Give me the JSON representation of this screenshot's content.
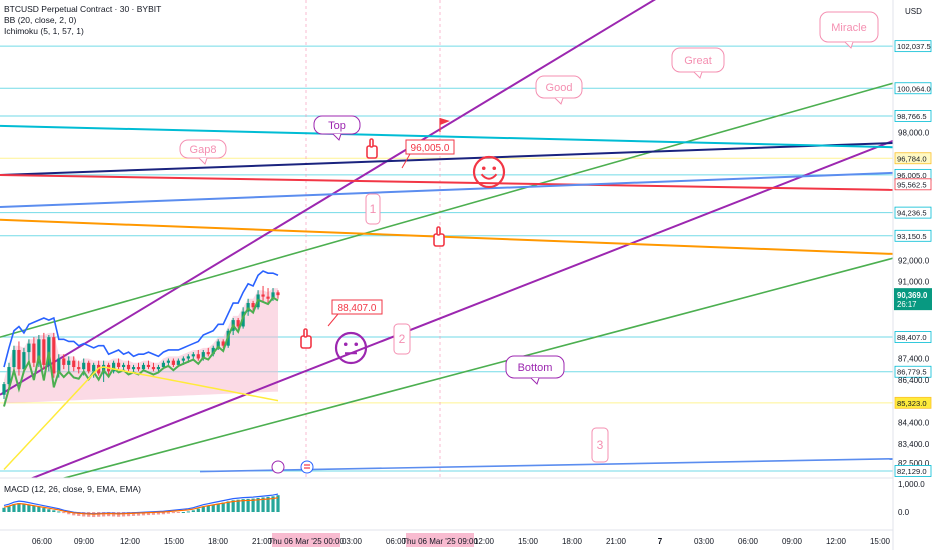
{
  "legend": {
    "line1": "BTCUSD Perpetual Contract · 30 · BYBIT",
    "line2": "BB (20, close, 2, 0)",
    "line3": "Ichimoku (5, 1, 57, 1)",
    "macd": "MACD (12, 26, close, 9, EMA, EMA)"
  },
  "currency": "USD",
  "countdown": "26:17",
  "colors": {
    "up": "#089981",
    "down": "#f23645",
    "bb": "#2962ff",
    "ichimoku": "#ffeb3b",
    "purple": "#9c27b0",
    "green": "#4caf50",
    "blue": "#5b8def",
    "navy": "#1a237e",
    "red": "#f23645",
    "orange": "#ff9800",
    "cyan": "#00bcd4",
    "pink": "#f06292"
  },
  "chart_data": {
    "type": "candlestick",
    "ylim": [
      81800,
      104200
    ],
    "price_ticks": [
      {
        "value": 102037.5,
        "label": "102,037.5",
        "style": "boxed"
      },
      {
        "value": 100064.0,
        "label": "100,064.0",
        "style": "boxed"
      },
      {
        "value": 98766.5,
        "label": "98,766.5",
        "style": "boxed"
      },
      {
        "value": 98000.0,
        "label": "98,000.0",
        "style": "plain"
      },
      {
        "value": 96784.0,
        "label": "96,784.0",
        "style": "yellow"
      },
      {
        "value": 96005.0,
        "label": "96,005.0",
        "style": "boxed"
      },
      {
        "value": 95562.5,
        "label": "95,562.5",
        "style": "red"
      },
      {
        "value": 94236.5,
        "label": "94,236.5",
        "style": "boxed"
      },
      {
        "value": 93150.5,
        "label": "93,150.5",
        "style": "boxed"
      },
      {
        "value": 92000.0,
        "label": "92,000.0",
        "style": "plain"
      },
      {
        "value": 91000.0,
        "label": "91,000.0",
        "style": "plain"
      },
      {
        "value": 88407.0,
        "label": "88,407.0",
        "style": "boxed"
      },
      {
        "value": 87400.0,
        "label": "87,400.0",
        "style": "plain"
      },
      {
        "value": 86779.5,
        "label": "86,779.5",
        "style": "boxed"
      },
      {
        "value": 86400.0,
        "label": "86,400.0",
        "style": "plain"
      },
      {
        "value": 85323.0,
        "label": "85,323.0",
        "style": "yellowfill"
      },
      {
        "value": 84400.0,
        "label": "84,400.0",
        "style": "plain"
      },
      {
        "value": 83400.0,
        "label": "83,400.0",
        "style": "plain"
      },
      {
        "value": 82500.0,
        "label": "82,500.0",
        "style": "plain"
      },
      {
        "value": 82129.0,
        "label": "82,129.0",
        "style": "boxed"
      }
    ],
    "last_price": {
      "value": 90369.0,
      "label": "90,369.0"
    },
    "horizontal_levels": [
      {
        "value": 102037.5,
        "color": "#00bcd4"
      },
      {
        "value": 100064.0,
        "color": "#00bcd4"
      },
      {
        "value": 98766.5,
        "color": "#00bcd4"
      },
      {
        "value": 96784.0,
        "color": "#ffeb3b"
      },
      {
        "value": 96005.0,
        "color": "#00bcd4"
      },
      {
        "value": 94236.5,
        "color": "#00bcd4"
      },
      {
        "value": 93150.5,
        "color": "#00bcd4"
      },
      {
        "value": 88407.0,
        "color": "#00bcd4"
      },
      {
        "value": 86779.5,
        "color": "#00bcd4"
      },
      {
        "value": 85323.0,
        "color": "#ffeb3b"
      },
      {
        "value": 82129.0,
        "color": "#00bcd4"
      }
    ],
    "candles": [
      {
        "o": 85700,
        "h": 86300,
        "l": 85500,
        "c": 86200
      },
      {
        "o": 86200,
        "h": 87200,
        "l": 86000,
        "c": 87000
      },
      {
        "o": 87000,
        "h": 88000,
        "l": 86800,
        "c": 87800
      },
      {
        "o": 87800,
        "h": 88200,
        "l": 86600,
        "c": 86900
      },
      {
        "o": 86900,
        "h": 87900,
        "l": 86700,
        "c": 87700
      },
      {
        "o": 87700,
        "h": 88300,
        "l": 87300,
        "c": 88100
      },
      {
        "o": 88100,
        "h": 88400,
        "l": 87000,
        "c": 87200
      },
      {
        "o": 87200,
        "h": 88500,
        "l": 87000,
        "c": 88300
      },
      {
        "o": 88300,
        "h": 88600,
        "l": 86900,
        "c": 87100
      },
      {
        "o": 87100,
        "h": 88500,
        "l": 86800,
        "c": 88400
      },
      {
        "o": 88400,
        "h": 88600,
        "l": 86500,
        "c": 86700
      },
      {
        "o": 86700,
        "h": 87600,
        "l": 86500,
        "c": 87400
      },
      {
        "o": 87400,
        "h": 87600,
        "l": 86900,
        "c": 87100
      },
      {
        "o": 87100,
        "h": 87500,
        "l": 86800,
        "c": 87300
      },
      {
        "o": 87300,
        "h": 87500,
        "l": 86800,
        "c": 87000
      },
      {
        "o": 87000,
        "h": 87300,
        "l": 86700,
        "c": 86900
      },
      {
        "o": 86900,
        "h": 87400,
        "l": 86600,
        "c": 87200
      },
      {
        "o": 87200,
        "h": 87300,
        "l": 86700,
        "c": 86800
      },
      {
        "o": 86800,
        "h": 87200,
        "l": 86500,
        "c": 87100
      },
      {
        "o": 87100,
        "h": 87300,
        "l": 86600,
        "c": 86700
      },
      {
        "o": 86700,
        "h": 87300,
        "l": 86300,
        "c": 87100
      },
      {
        "o": 87100,
        "h": 87200,
        "l": 86600,
        "c": 86800
      },
      {
        "o": 86800,
        "h": 87300,
        "l": 86700,
        "c": 87200
      },
      {
        "o": 87200,
        "h": 87400,
        "l": 86900,
        "c": 87000
      },
      {
        "o": 87000,
        "h": 87200,
        "l": 86800,
        "c": 87100
      },
      {
        "o": 87100,
        "h": 87300,
        "l": 86800,
        "c": 86900
      },
      {
        "o": 86900,
        "h": 87100,
        "l": 86700,
        "c": 87000
      },
      {
        "o": 87000,
        "h": 87200,
        "l": 86800,
        "c": 86900
      },
      {
        "o": 86900,
        "h": 87200,
        "l": 86800,
        "c": 87100
      },
      {
        "o": 87100,
        "h": 87300,
        "l": 86900,
        "c": 87000
      },
      {
        "o": 87000,
        "h": 87200,
        "l": 86800,
        "c": 86900
      },
      {
        "o": 86900,
        "h": 87100,
        "l": 86700,
        "c": 87000
      },
      {
        "o": 87000,
        "h": 87300,
        "l": 86900,
        "c": 87200
      },
      {
        "o": 87200,
        "h": 87400,
        "l": 87000,
        "c": 87300
      },
      {
        "o": 87300,
        "h": 87400,
        "l": 87000,
        "c": 87100
      },
      {
        "o": 87100,
        "h": 87400,
        "l": 87000,
        "c": 87300
      },
      {
        "o": 87300,
        "h": 87500,
        "l": 87100,
        "c": 87400
      },
      {
        "o": 87400,
        "h": 87600,
        "l": 87200,
        "c": 87500
      },
      {
        "o": 87500,
        "h": 87700,
        "l": 87300,
        "c": 87600
      },
      {
        "o": 87600,
        "h": 87800,
        "l": 87300,
        "c": 87400
      },
      {
        "o": 87400,
        "h": 87800,
        "l": 87300,
        "c": 87700
      },
      {
        "o": 87700,
        "h": 87900,
        "l": 87500,
        "c": 87600
      },
      {
        "o": 87600,
        "h": 88000,
        "l": 87500,
        "c": 87900
      },
      {
        "o": 87900,
        "h": 88300,
        "l": 87800,
        "c": 88200
      },
      {
        "o": 88200,
        "h": 88300,
        "l": 87900,
        "c": 88000
      },
      {
        "o": 88000,
        "h": 88800,
        "l": 87900,
        "c": 88700
      },
      {
        "o": 88700,
        "h": 89300,
        "l": 88500,
        "c": 89200
      },
      {
        "o": 89200,
        "h": 89300,
        "l": 88800,
        "c": 88900
      },
      {
        "o": 88900,
        "h": 89800,
        "l": 88800,
        "c": 89600
      },
      {
        "o": 89600,
        "h": 90200,
        "l": 89400,
        "c": 90000
      },
      {
        "o": 90000,
        "h": 90100,
        "l": 89600,
        "c": 89800
      },
      {
        "o": 89800,
        "h": 90600,
        "l": 89700,
        "c": 90400
      },
      {
        "o": 90400,
        "h": 90800,
        "l": 90100,
        "c": 90300
      },
      {
        "o": 90300,
        "h": 90700,
        "l": 90000,
        "c": 90200
      },
      {
        "o": 90200,
        "h": 90700,
        "l": 90100,
        "c": 90500
      },
      {
        "o": 90500,
        "h": 90600,
        "l": 90200,
        "c": 90369
      }
    ],
    "macd_ticks": [
      {
        "value": 1000,
        "label": "1,000.0"
      },
      {
        "value": 0,
        "label": "0.0"
      }
    ],
    "macd_histogram": [
      150,
      200,
      280,
      320,
      300,
      260,
      220,
      180,
      140,
      100,
      60,
      20,
      -40,
      -80,
      -120,
      -140,
      -160,
      -170,
      -180,
      -170,
      -160,
      -150,
      -160,
      -170,
      -160,
      -150,
      -140,
      -130,
      -120,
      -110,
      -100,
      -90,
      -80,
      -60,
      -40,
      -20,
      0,
      20,
      60,
      120,
      180,
      220,
      260,
      300,
      340,
      380,
      420,
      440,
      460,
      470,
      480,
      500,
      520,
      540,
      560,
      600
    ],
    "time_labels": [
      {
        "x": 42,
        "label": "06:00",
        "style": "plain"
      },
      {
        "x": 84,
        "label": "09:00",
        "style": "plain"
      },
      {
        "x": 130,
        "label": "12:00",
        "style": "plain"
      },
      {
        "x": 174,
        "label": "15:00",
        "style": "plain"
      },
      {
        "x": 218,
        "label": "18:00",
        "style": "plain"
      },
      {
        "x": 262,
        "label": "21:00",
        "style": "plain"
      },
      {
        "x": 306,
        "label": "Thu 06 Mar '25  00:00",
        "style": "highlight"
      },
      {
        "x": 352,
        "label": "03:00",
        "style": "plain"
      },
      {
        "x": 396,
        "label": "06:00",
        "style": "plain"
      },
      {
        "x": 440,
        "label": "Thu 06 Mar '25  09:00",
        "style": "highlight"
      },
      {
        "x": 484,
        "label": "12:00",
        "style": "plain"
      },
      {
        "x": 528,
        "label": "15:00",
        "style": "plain"
      },
      {
        "x": 572,
        "label": "18:00",
        "style": "plain"
      },
      {
        "x": 616,
        "label": "21:00",
        "style": "plain"
      },
      {
        "x": 660,
        "label": "7",
        "style": "bold"
      },
      {
        "x": 704,
        "label": "03:00",
        "style": "plain"
      },
      {
        "x": 748,
        "label": "06:00",
        "style": "plain"
      },
      {
        "x": 792,
        "label": "09:00",
        "style": "plain"
      },
      {
        "x": 836,
        "label": "12:00",
        "style": "plain"
      },
      {
        "x": 880,
        "label": "15:00",
        "style": "plain"
      }
    ],
    "annotations": [
      {
        "text": "Top",
        "kind": "bubble",
        "color": "#9c27b0"
      },
      {
        "text": "Gap8",
        "kind": "bubble",
        "color": "#f48fb1"
      },
      {
        "text": "Good",
        "kind": "bubble",
        "color": "#f48fb1"
      },
      {
        "text": "Great",
        "kind": "bubble",
        "color": "#f48fb1"
      },
      {
        "text": "Miracle",
        "kind": "bubble",
        "color": "#f48fb1"
      },
      {
        "text": "Bottom",
        "kind": "bubble",
        "color": "#9c27b0"
      },
      {
        "text": "96,005.0",
        "kind": "callout",
        "color": "#f23645"
      },
      {
        "text": "88,407.0",
        "kind": "callout",
        "color": "#f23645"
      },
      {
        "text": "1",
        "kind": "box",
        "color": "#f48fb1"
      },
      {
        "text": "2",
        "kind": "box",
        "color": "#f48fb1"
      },
      {
        "text": "3",
        "kind": "box",
        "color": "#f48fb1"
      }
    ],
    "emoji": [
      {
        "name": "smiley-face-icon",
        "color": "#f23645"
      },
      {
        "name": "neutral-face-icon",
        "color": "#9c27b0"
      },
      {
        "name": "pointing-hand-icon",
        "color": "#f23645"
      },
      {
        "name": "red-flag-icon",
        "color": "#f23645"
      }
    ]
  }
}
